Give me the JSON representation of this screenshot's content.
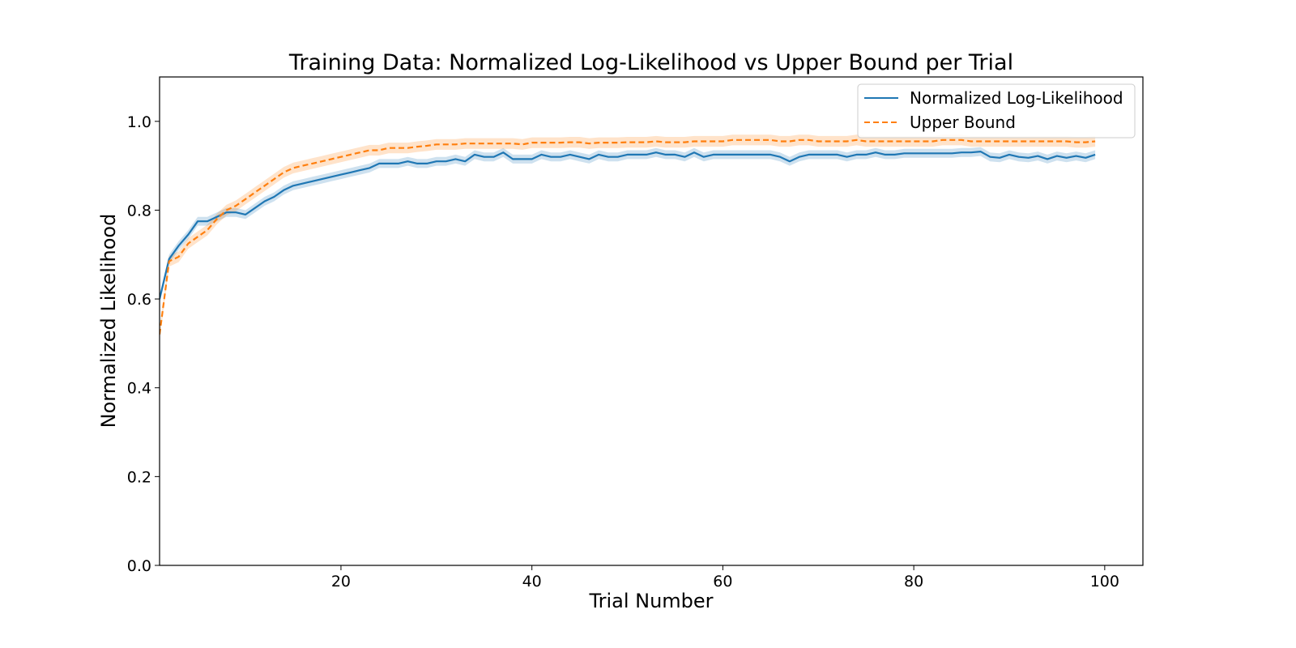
{
  "chart_data": {
    "type": "line",
    "title": "Training Data: Normalized Log-Likelihood vs Upper Bound per Trial",
    "xlabel": "Trial Number",
    "ylabel": "Normalized Likelihood",
    "xlim": [
      1,
      104
    ],
    "ylim": [
      0,
      1.1
    ],
    "xticks": [
      20,
      40,
      60,
      80,
      100
    ],
    "yticks": [
      0.0,
      0.2,
      0.4,
      0.6,
      0.8,
      1.0
    ],
    "xtick_labels": [
      "20",
      "40",
      "60",
      "80",
      "100"
    ],
    "ytick_labels": [
      "0.0",
      "0.2",
      "0.4",
      "0.6",
      "0.8",
      "1.0"
    ],
    "grid": false,
    "legend_position": "top-right",
    "x": [
      1,
      2,
      3,
      4,
      5,
      6,
      7,
      8,
      9,
      10,
      11,
      12,
      13,
      14,
      15,
      16,
      17,
      18,
      19,
      20,
      21,
      22,
      23,
      24,
      25,
      26,
      27,
      28,
      29,
      30,
      31,
      32,
      33,
      34,
      35,
      36,
      37,
      38,
      39,
      40,
      41,
      42,
      43,
      44,
      45,
      46,
      47,
      48,
      49,
      50,
      51,
      52,
      53,
      54,
      55,
      56,
      57,
      58,
      59,
      60,
      61,
      62,
      63,
      64,
      65,
      66,
      67,
      68,
      69,
      70,
      71,
      72,
      73,
      74,
      75,
      76,
      77,
      78,
      79,
      80,
      81,
      82,
      83,
      84,
      85,
      86,
      87,
      88,
      89,
      90,
      91,
      92,
      93,
      94,
      95,
      96,
      97,
      98,
      99
    ],
    "series": [
      {
        "name": "Normalized Log-Likelihood",
        "color": "#1f77b4",
        "style": "solid",
        "band": 0.01,
        "values": [
          0.6,
          0.69,
          0.72,
          0.745,
          0.775,
          0.775,
          0.785,
          0.795,
          0.795,
          0.79,
          0.805,
          0.82,
          0.83,
          0.845,
          0.855,
          0.86,
          0.865,
          0.87,
          0.875,
          0.88,
          0.885,
          0.89,
          0.895,
          0.905,
          0.905,
          0.905,
          0.91,
          0.905,
          0.905,
          0.91,
          0.91,
          0.915,
          0.91,
          0.925,
          0.92,
          0.92,
          0.93,
          0.915,
          0.915,
          0.915,
          0.925,
          0.92,
          0.92,
          0.925,
          0.92,
          0.915,
          0.925,
          0.92,
          0.92,
          0.925,
          0.925,
          0.925,
          0.93,
          0.925,
          0.925,
          0.92,
          0.93,
          0.92,
          0.925,
          0.925,
          0.925,
          0.925,
          0.925,
          0.925,
          0.925,
          0.92,
          0.91,
          0.92,
          0.925,
          0.925,
          0.925,
          0.925,
          0.92,
          0.925,
          0.925,
          0.93,
          0.925,
          0.925,
          0.928,
          0.928,
          0.928,
          0.928,
          0.928,
          0.928,
          0.93,
          0.93,
          0.932,
          0.92,
          0.918,
          0.925,
          0.92,
          0.918,
          0.922,
          0.915,
          0.922,
          0.918,
          0.922,
          0.918,
          0.925
        ]
      },
      {
        "name": "Upper Bound",
        "color": "#ff7f0e",
        "style": "dashed",
        "band": 0.012,
        "values": [
          0.52,
          0.685,
          0.695,
          0.725,
          0.74,
          0.755,
          0.78,
          0.8,
          0.81,
          0.825,
          0.84,
          0.855,
          0.87,
          0.885,
          0.895,
          0.9,
          0.905,
          0.91,
          0.915,
          0.92,
          0.925,
          0.93,
          0.935,
          0.935,
          0.94,
          0.94,
          0.94,
          0.943,
          0.945,
          0.948,
          0.948,
          0.948,
          0.95,
          0.95,
          0.95,
          0.95,
          0.95,
          0.95,
          0.948,
          0.952,
          0.952,
          0.952,
          0.952,
          0.953,
          0.953,
          0.95,
          0.952,
          0.952,
          0.952,
          0.953,
          0.953,
          0.953,
          0.955,
          0.953,
          0.953,
          0.953,
          0.955,
          0.955,
          0.955,
          0.955,
          0.958,
          0.958,
          0.958,
          0.958,
          0.958,
          0.955,
          0.955,
          0.958,
          0.958,
          0.955,
          0.955,
          0.955,
          0.955,
          0.958,
          0.955,
          0.955,
          0.955,
          0.955,
          0.955,
          0.955,
          0.955,
          0.955,
          0.958,
          0.958,
          0.958,
          0.955,
          0.955,
          0.955,
          0.955,
          0.955,
          0.955,
          0.955,
          0.955,
          0.955,
          0.955,
          0.955,
          0.953,
          0.953,
          0.955
        ]
      }
    ]
  }
}
